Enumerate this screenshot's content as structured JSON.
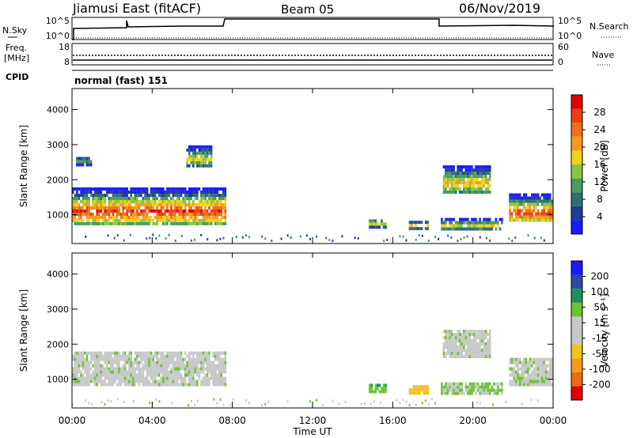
{
  "header": {
    "station": "Jiamusi East (fitACF)",
    "beam": "Beam 05",
    "date": "06/Nov/2019"
  },
  "nsky": {
    "label": "N.Sky",
    "ticks": [
      "10^5",
      "10^0"
    ]
  },
  "nsearch": {
    "label": "N.Search",
    "ticks": [
      "10^5",
      "10^0"
    ]
  },
  "freq": {
    "label_line1": "Freq.",
    "label_line2": "[MHz]",
    "ticks": [
      "18",
      "8"
    ]
  },
  "nave": {
    "label": "Nave",
    "ticks": [
      "60",
      "0"
    ]
  },
  "cpid": {
    "label": "CPID",
    "mode": "normal (fast) 151"
  },
  "range_axis": {
    "label": "Slant Range [km]",
    "ticks": [
      "4000",
      "3000",
      "2000",
      "1000"
    ],
    "tick_values": [
      4000,
      3000,
      2000,
      1000
    ],
    "range_km": [
      180,
      4600
    ]
  },
  "time_axis": {
    "label": "Time UT",
    "ticks": [
      "00:00",
      "04:00",
      "08:00",
      "12:00",
      "16:00",
      "20:00",
      "00:00"
    ],
    "tick_hours": [
      0,
      4,
      8,
      12,
      16,
      20,
      24
    ]
  },
  "power_scale": {
    "label": "Power [dB]",
    "ticks": [
      "28",
      "24",
      "20",
      "16",
      "12",
      "8",
      "4"
    ],
    "colors": [
      "#1a1aff",
      "#1e3c9a",
      "#2e6e72",
      "#4a9a5e",
      "#8cc63f",
      "#f2d21b",
      "#f59a1e",
      "#f0701a",
      "#ec3d12",
      "#e00000"
    ]
  },
  "velocity_scale": {
    "label": "Velocity [m s⁻¹]",
    "ticks": [
      "200",
      "100",
      "50",
      "15",
      "-15",
      "-50",
      "-100",
      "-200"
    ],
    "colors": [
      "#1a1aff",
      "#2a4aa8",
      "#1f8f5a",
      "#6cc433",
      "#c8c8c8",
      "#c8c8c8",
      "#f2c21e",
      "#f59a1e",
      "#f06a12",
      "#e00000"
    ]
  },
  "chart_data": [
    {
      "type": "heatmap",
      "name": "power",
      "x_range_hours": [
        0,
        24
      ],
      "y_range_km": [
        180,
        4600
      ],
      "echo_regions": [
        {
          "t0": 0.0,
          "t1": 7.6,
          "r0": 700,
          "r1": 1700,
          "peak_km": 1050,
          "max_db": 28
        },
        {
          "t0": 0.2,
          "t1": 0.9,
          "r0": 2380,
          "r1": 2620,
          "peak_km": 2500,
          "max_db": 12
        },
        {
          "t0": 5.7,
          "t1": 6.9,
          "r0": 2350,
          "r1": 2900,
          "peak_km": 2550,
          "max_db": 18
        },
        {
          "t0": 14.8,
          "t1": 15.6,
          "r0": 600,
          "r1": 850,
          "peak_km": 700,
          "max_db": 18
        },
        {
          "t0": 16.8,
          "t1": 17.8,
          "r0": 560,
          "r1": 780,
          "peak_km": 650,
          "max_db": 20
        },
        {
          "t0": 18.5,
          "t1": 20.9,
          "r0": 1600,
          "r1": 2350,
          "peak_km": 1850,
          "max_db": 20
        },
        {
          "t0": 18.4,
          "t1": 21.5,
          "r0": 550,
          "r1": 850,
          "peak_km": 650,
          "max_db": 18
        },
        {
          "t0": 21.8,
          "t1": 24.0,
          "r0": 800,
          "r1": 1600,
          "peak_km": 1000,
          "max_db": 28
        }
      ]
    },
    {
      "type": "heatmap",
      "name": "velocity",
      "x_range_hours": [
        0,
        24
      ],
      "y_range_km": [
        180,
        4600
      ],
      "echo_regions": [
        {
          "t0": 0.0,
          "t1": 7.6,
          "r0": 800,
          "r1": 1700,
          "velocity": 0
        },
        {
          "t0": 14.8,
          "t1": 15.6,
          "r0": 600,
          "r1": 850,
          "velocity": 40
        },
        {
          "t0": 16.8,
          "t1": 17.8,
          "r0": 560,
          "r1": 780,
          "velocity": -80
        },
        {
          "t0": 18.5,
          "t1": 20.9,
          "r0": 1600,
          "r1": 2350,
          "velocity": 0
        },
        {
          "t0": 18.4,
          "t1": 21.5,
          "r0": 550,
          "r1": 850,
          "velocity": 20
        },
        {
          "t0": 21.8,
          "t1": 24.0,
          "r0": 800,
          "r1": 1600,
          "velocity": 5
        }
      ]
    }
  ]
}
